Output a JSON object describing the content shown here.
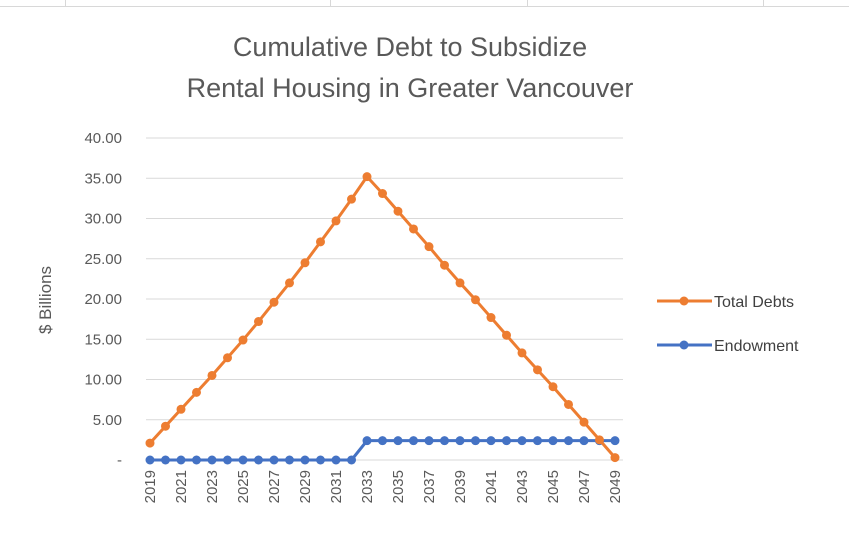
{
  "chart_data": {
    "type": "line",
    "title": [
      "Cumulative Debt to Subsidize",
      "Rental Housing in Greater Vancouver"
    ],
    "xlabel": "",
    "ylabel": "$ Billions",
    "ylim": [
      0,
      40
    ],
    "yticks": [
      "-",
      "5.00",
      "10.00",
      "15.00",
      "20.00",
      "25.00",
      "30.00",
      "35.00",
      "40.00"
    ],
    "grid": true,
    "legend_position": "right",
    "x": [
      2019,
      2020,
      2021,
      2022,
      2023,
      2024,
      2025,
      2026,
      2027,
      2028,
      2029,
      2030,
      2031,
      2032,
      2033,
      2034,
      2035,
      2036,
      2037,
      2038,
      2039,
      2040,
      2041,
      2042,
      2043,
      2044,
      2045,
      2046,
      2047,
      2048,
      2049
    ],
    "xtick_labels": [
      "2019",
      "2021",
      "2023",
      "2025",
      "2027",
      "2029",
      "2031",
      "2033",
      "2035",
      "2037",
      "2039",
      "2041",
      "2043",
      "2045",
      "2047",
      "2049"
    ],
    "series": [
      {
        "name": "Total Debts",
        "color": "#ED7D31",
        "values": [
          2.1,
          4.2,
          6.3,
          8.4,
          10.5,
          12.7,
          14.9,
          17.2,
          19.6,
          22.0,
          24.5,
          27.1,
          29.7,
          32.4,
          35.2,
          33.1,
          30.9,
          28.7,
          26.5,
          24.2,
          22.0,
          19.9,
          17.7,
          15.5,
          13.3,
          11.2,
          9.1,
          6.9,
          4.7,
          2.5,
          0.3
        ]
      },
      {
        "name": "Endowment",
        "color": "#4472C4",
        "values": [
          0,
          0,
          0,
          0,
          0,
          0,
          0,
          0,
          0,
          0,
          0,
          0,
          0,
          0,
          2.4,
          2.4,
          2.4,
          2.4,
          2.4,
          2.4,
          2.4,
          2.4,
          2.4,
          2.4,
          2.4,
          2.4,
          2.4,
          2.4,
          2.4,
          2.4,
          2.4
        ]
      }
    ]
  }
}
